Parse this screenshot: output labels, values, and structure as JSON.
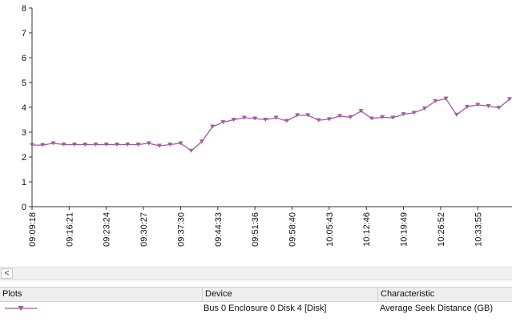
{
  "chart_data": {
    "type": "line",
    "title": "",
    "xlabel": "",
    "ylabel": "",
    "ylim": [
      0,
      8
    ],
    "yticks": [
      0,
      1,
      2,
      3,
      4,
      5,
      6,
      7,
      8
    ],
    "xtick_labels": [
      "09:09:18",
      "09:16:21",
      "09:23:24",
      "09:30:27",
      "09:37:30",
      "09:44:33",
      "09:51:36",
      "09:58:40",
      "10:05:43",
      "10:12:46",
      "10:19:49",
      "10:26:52",
      "10:33:55"
    ],
    "grid": false,
    "legend": "none",
    "series": [
      {
        "color": "#a05aa0",
        "marker": "triangle-down",
        "values": [
          2.48,
          2.48,
          2.55,
          2.5,
          2.5,
          2.5,
          2.5,
          2.5,
          2.5,
          2.5,
          2.5,
          2.55,
          2.45,
          2.5,
          2.55,
          2.25,
          2.62,
          3.22,
          3.4,
          3.5,
          3.58,
          3.55,
          3.5,
          3.58,
          3.45,
          3.68,
          3.68,
          3.48,
          3.52,
          3.65,
          3.6,
          3.85,
          3.55,
          3.6,
          3.58,
          3.72,
          3.78,
          3.95,
          4.25,
          4.35,
          3.7,
          4.02,
          4.1,
          4.05,
          3.98,
          4.33
        ]
      }
    ]
  },
  "table": {
    "headers": {
      "plots": "Plots",
      "device": "Device",
      "characteristic": "Characteristic"
    },
    "rows": [
      {
        "device": "Bus 0 Enclosure 0 Disk 4 [Disk]",
        "characteristic": "Average Seek Distance (GB)",
        "color": "#a05aa0"
      }
    ]
  },
  "scrollbar": {
    "left_arrow": "<"
  }
}
